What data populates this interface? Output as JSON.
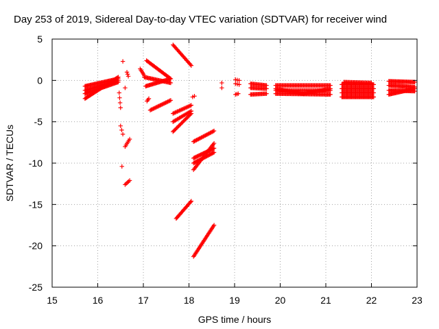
{
  "chart_data": {
    "type": "scatter",
    "title": "Day 253 of 2019, Sidereal Day-to-day VTEC variation (SDTVAR) for receiver wind",
    "xlabel": "GPS time / hours",
    "ylabel": "SDTVAR / TECUs",
    "xlim": [
      15,
      23
    ],
    "ylim": [
      -25,
      5
    ],
    "xticks": [
      15,
      16,
      17,
      18,
      19,
      20,
      21,
      22,
      23
    ],
    "yticks": [
      5,
      0,
      -5,
      -10,
      -15,
      -20,
      -25
    ],
    "grid": true,
    "marker": "+",
    "color": "#ff0000",
    "segments": [
      {
        "x0": 15.72,
        "y0": -2.2,
        "x1": 16.45,
        "y1": 0.4,
        "n": 40
      },
      {
        "x0": 15.72,
        "y0": -1.2,
        "x1": 16.45,
        "y1": 0.0,
        "n": 40
      },
      {
        "x0": 15.72,
        "y0": -0.7,
        "x1": 16.45,
        "y1": 0.2,
        "n": 40
      },
      {
        "x0": 15.72,
        "y0": -1.6,
        "x1": 16.45,
        "y1": -0.2,
        "n": 40
      },
      {
        "x0": 16.47,
        "y0": -1.5,
        "x1": 16.5,
        "y1": -3.3,
        "n": 4
      },
      {
        "x0": 16.5,
        "y0": -5.5,
        "x1": 16.55,
        "y1": -6.5,
        "n": 3
      },
      {
        "x0": 16.53,
        "y0": -10.4,
        "x1": 16.53,
        "y1": -10.4,
        "n": 1
      },
      {
        "x0": 16.55,
        "y0": 2.3,
        "x1": 16.55,
        "y1": 2.3,
        "n": 1
      },
      {
        "x0": 16.6,
        "y0": -0.9,
        "x1": 16.6,
        "y1": -0.9,
        "n": 1
      },
      {
        "x0": 16.64,
        "y0": 1.0,
        "x1": 16.67,
        "y1": 0.5,
        "n": 3
      },
      {
        "x0": 16.6,
        "y0": -8.0,
        "x1": 16.7,
        "y1": -7.1,
        "n": 6
      },
      {
        "x0": 16.6,
        "y0": -12.6,
        "x1": 16.7,
        "y1": -12.1,
        "n": 5
      },
      {
        "x0": 16.93,
        "y0": 1.4,
        "x1": 17.02,
        "y1": 0.6,
        "n": 6
      },
      {
        "x0": 17.02,
        "y0": 0.4,
        "x1": 17.6,
        "y1": -0.3,
        "n": 30
      },
      {
        "x0": 17.05,
        "y0": -0.7,
        "x1": 17.6,
        "y1": 0.2,
        "n": 30
      },
      {
        "x0": 17.07,
        "y0": 2.4,
        "x1": 17.6,
        "y1": 0.2,
        "n": 28
      },
      {
        "x0": 17.08,
        "y0": -2.5,
        "x1": 17.12,
        "y1": -2.2,
        "n": 3
      },
      {
        "x0": 17.15,
        "y0": -3.6,
        "x1": 17.6,
        "y1": -2.4,
        "n": 22
      },
      {
        "x0": 17.65,
        "y0": 4.3,
        "x1": 18.05,
        "y1": 1.8,
        "n": 22
      },
      {
        "x0": 17.65,
        "y0": -4.0,
        "x1": 18.05,
        "y1": -3.0,
        "n": 18
      },
      {
        "x0": 17.65,
        "y0": -6.2,
        "x1": 18.05,
        "y1": -4.0,
        "n": 20
      },
      {
        "x0": 17.65,
        "y0": -5.0,
        "x1": 18.05,
        "y1": -3.7,
        "n": 18
      },
      {
        "x0": 17.72,
        "y0": -16.7,
        "x1": 18.05,
        "y1": -14.6,
        "n": 20
      },
      {
        "x0": 18.08,
        "y0": -2.0,
        "x1": 18.12,
        "y1": -1.9,
        "n": 2
      },
      {
        "x0": 18.1,
        "y0": -7.4,
        "x1": 18.55,
        "y1": -6.1,
        "n": 22
      },
      {
        "x0": 18.1,
        "y0": -10.8,
        "x1": 18.55,
        "y1": -7.6,
        "n": 24
      },
      {
        "x0": 18.1,
        "y0": -10.0,
        "x1": 18.55,
        "y1": -8.7,
        "n": 24
      },
      {
        "x0": 18.1,
        "y0": -9.4,
        "x1": 18.55,
        "y1": -8.2,
        "n": 24
      },
      {
        "x0": 18.1,
        "y0": -21.3,
        "x1": 18.55,
        "y1": -17.5,
        "n": 28
      },
      {
        "x0": 18.72,
        "y0": -0.9,
        "x1": 18.72,
        "y1": -0.3,
        "n": 2
      },
      {
        "x0": 19.02,
        "y0": -1.7,
        "x1": 19.08,
        "y1": -1.6,
        "n": 3
      },
      {
        "x0": 19.02,
        "y0": -0.4,
        "x1": 19.1,
        "y1": -0.5,
        "n": 3
      },
      {
        "x0": 19.02,
        "y0": 0.1,
        "x1": 19.1,
        "y1": 0.0,
        "n": 3
      },
      {
        "x0": 19.35,
        "y0": -1.7,
        "x1": 19.7,
        "y1": -1.6,
        "n": 18
      },
      {
        "x0": 19.35,
        "y0": -0.9,
        "x1": 19.7,
        "y1": -1.0,
        "n": 18
      },
      {
        "x0": 19.35,
        "y0": -0.4,
        "x1": 19.7,
        "y1": -0.6,
        "n": 18
      },
      {
        "x0": 19.9,
        "y0": -1.6,
        "x1": 21.1,
        "y1": -1.7,
        "n": 60
      },
      {
        "x0": 19.9,
        "y0": -0.6,
        "x1": 21.1,
        "y1": -0.6,
        "n": 60
      },
      {
        "x0": 19.9,
        "y0": -1.0,
        "x1": 20.5,
        "y1": -1.6,
        "n": 30
      },
      {
        "x0": 20.5,
        "y0": -1.6,
        "x1": 21.1,
        "y1": -1.0,
        "n": 30
      },
      {
        "x0": 19.9,
        "y0": -1.2,
        "x1": 21.1,
        "y1": -1.2,
        "n": 55
      },
      {
        "x0": 21.35,
        "y0": -2.0,
        "x1": 22.05,
        "y1": -2.0,
        "n": 40
      },
      {
        "x0": 21.35,
        "y0": -1.5,
        "x1": 22.05,
        "y1": -1.5,
        "n": 40
      },
      {
        "x0": 21.35,
        "y0": -1.0,
        "x1": 22.05,
        "y1": -1.0,
        "n": 40
      },
      {
        "x0": 21.35,
        "y0": -0.5,
        "x1": 22.05,
        "y1": -0.5,
        "n": 40
      },
      {
        "x0": 21.4,
        "y0": -0.2,
        "x1": 22.0,
        "y1": -0.3,
        "n": 30
      },
      {
        "x0": 22.38,
        "y0": -1.7,
        "x1": 22.95,
        "y1": -1.0,
        "n": 32
      },
      {
        "x0": 22.38,
        "y0": -1.2,
        "x1": 22.95,
        "y1": -1.3,
        "n": 32
      },
      {
        "x0": 22.38,
        "y0": -0.6,
        "x1": 22.95,
        "y1": -0.8,
        "n": 32
      },
      {
        "x0": 22.38,
        "y0": -0.1,
        "x1": 22.95,
        "y1": -0.2,
        "n": 32
      }
    ]
  }
}
